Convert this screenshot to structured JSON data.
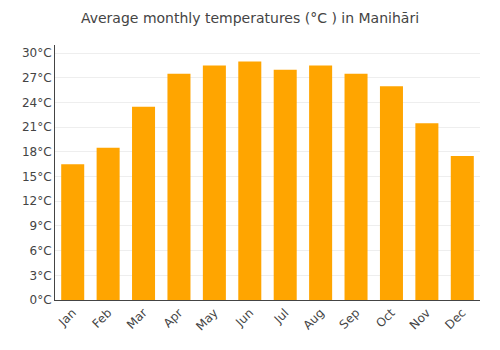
{
  "chart_data": {
    "type": "bar",
    "title": "Average monthly temperatures (°C ) in Manihāri",
    "categories": [
      "Jan",
      "Feb",
      "Mar",
      "Apr",
      "May",
      "Jun",
      "Jul",
      "Aug",
      "Sep",
      "Oct",
      "Nov",
      "Dec"
    ],
    "values": [
      16.5,
      18.5,
      23.5,
      27.5,
      28.5,
      29.0,
      28.0,
      28.5,
      27.5,
      26.0,
      21.5,
      17.5
    ],
    "color": "#FFA500",
    "ylim": [
      0,
      31
    ],
    "yticks": [
      {
        "value": 0,
        "label": "0°C"
      },
      {
        "value": 3,
        "label": "3°C"
      },
      {
        "value": 6,
        "label": "6°C"
      },
      {
        "value": 9,
        "label": "9°C"
      },
      {
        "value": 12,
        "label": "12°C"
      },
      {
        "value": 15,
        "label": "15°C"
      },
      {
        "value": 18,
        "label": "18°C"
      },
      {
        "value": 21,
        "label": "21°C"
      },
      {
        "value": 24,
        "label": "24°C"
      },
      {
        "value": 27,
        "label": "27°C"
      },
      {
        "value": 30,
        "label": "30°C"
      }
    ],
    "grid": true
  }
}
